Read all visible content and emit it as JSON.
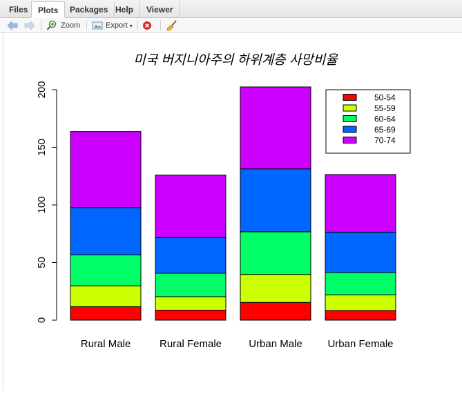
{
  "tabs": [
    {
      "label": "Files"
    },
    {
      "label": "Plots"
    },
    {
      "label": "Packages"
    },
    {
      "label": "Help"
    },
    {
      "label": "Viewer"
    }
  ],
  "toolbar": {
    "zoom_label": "Zoom",
    "export_label": "Export"
  },
  "icons": {
    "back": "arrow-left-icon",
    "forward": "arrow-right-icon",
    "zoom": "zoom-icon",
    "export": "export-icon",
    "remove": "remove-plot-icon",
    "clear": "broom-icon"
  },
  "chart_data": {
    "type": "bar",
    "stacked": true,
    "title": "미국 버지니아주의 하위계층 사망비율",
    "xlabel": "",
    "ylabel": "",
    "ylim": [
      0,
      200
    ],
    "yticks": [
      0,
      50,
      100,
      150,
      200
    ],
    "categories": [
      "Rural Male",
      "Rural Female",
      "Urban Male",
      "Urban Female"
    ],
    "series": [
      {
        "name": "50-54",
        "color": "#FF0000",
        "values": [
          11.7,
          8.7,
          15.4,
          8.4
        ]
      },
      {
        "name": "55-59",
        "color": "#CCFF00",
        "values": [
          18.1,
          11.7,
          24.3,
          13.6
        ]
      },
      {
        "name": "60-64",
        "color": "#00FF66",
        "values": [
          26.9,
          20.3,
          37.0,
          19.3
        ]
      },
      {
        "name": "65-69",
        "color": "#0066FF",
        "values": [
          41.0,
          30.9,
          54.6,
          35.1
        ]
      },
      {
        "name": "70-74",
        "color": "#CC00FF",
        "values": [
          66.0,
          54.3,
          71.1,
          50.0
        ]
      }
    ],
    "legend_position": "top-right"
  }
}
